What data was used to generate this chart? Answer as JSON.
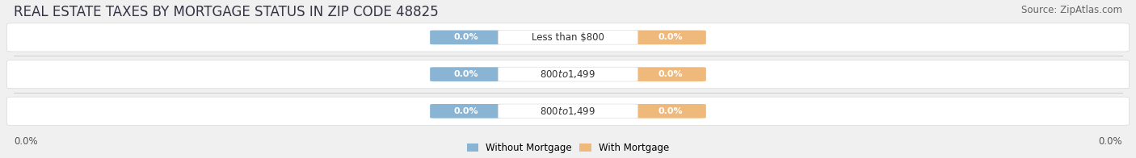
{
  "title": "REAL ESTATE TAXES BY MORTGAGE STATUS IN ZIP CODE 48825",
  "source": "Source: ZipAtlas.com",
  "categories": [
    "Less than $800",
    "$800 to $1,499",
    "$800 to $1,499"
  ],
  "without_mortgage": [
    0.0,
    0.0,
    0.0
  ],
  "with_mortgage": [
    0.0,
    0.0,
    0.0
  ],
  "bar_color_without": "#8ab4d4",
  "bar_color_with": "#f0b97c",
  "label_without": "Without Mortgage",
  "label_with": "With Mortgage",
  "background_color": "#f0f0f0",
  "row_bg_color": "#e8e8e8",
  "row_white_color": "#f8f8f8",
  "axis_label_left": "0.0%",
  "axis_label_right": "0.0%",
  "title_fontsize": 12,
  "source_fontsize": 8.5,
  "bar_label_fontsize": 8,
  "cat_label_fontsize": 8.5
}
